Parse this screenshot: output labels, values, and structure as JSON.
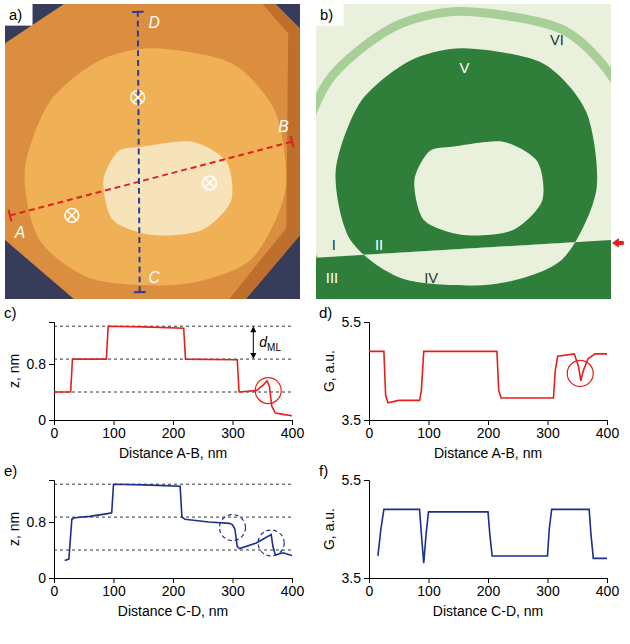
{
  "panels": [
    {
      "label": "a)",
      "points": [
        "A",
        "B",
        "C",
        "D"
      ]
    },
    {
      "label": "b)",
      "regions": [
        "I",
        "II",
        "III",
        "IV",
        "V",
        "VI"
      ]
    }
  ],
  "chart_data": [
    {
      "panel": "c)",
      "type": "line",
      "x_label": "Distance A-B, nm",
      "y_label": "z, nm",
      "xlim": [
        0,
        400
      ],
      "xticks": [
        0,
        100,
        200,
        300,
        400
      ],
      "ylim": [
        0,
        1.4
      ],
      "yticks": [
        0,
        0.8
      ],
      "x": [
        0,
        28,
        31,
        88,
        91,
        150,
        218,
        221,
        305,
        308,
        311,
        340,
        352,
        358,
        362,
        366,
        372,
        385,
        400
      ],
      "series": [
        {
          "color": "#e3211c",
          "values": [
            0.4,
            0.4,
            0.87,
            0.87,
            1.34,
            1.33,
            1.31,
            0.87,
            0.86,
            0.86,
            0.4,
            0.42,
            0.5,
            0.56,
            0.48,
            0.2,
            0.1,
            0.08,
            0.06
          ]
        }
      ],
      "hlines": [
        0.4,
        0.87,
        1.34
      ],
      "circles": [
        {
          "x": 360,
          "y": 0.42,
          "line_style": "solid"
        }
      ],
      "annotations": [
        {
          "text": "d",
          "subscript": "ML",
          "x": 335,
          "y": [
            0.87,
            1.34
          ]
        }
      ]
    },
    {
      "panel": "d)",
      "type": "line",
      "x_label": "Distance A-B, nm",
      "y_label": "G, a.u.",
      "xlim": [
        0,
        400
      ],
      "xticks": [
        0,
        100,
        200,
        300,
        400
      ],
      "ylim": [
        3.5,
        5.5
      ],
      "yticks": [
        3.5,
        5.5
      ],
      "x": [
        0,
        25,
        28,
        32,
        50,
        85,
        88,
        92,
        150,
        215,
        218,
        222,
        270,
        310,
        313,
        317,
        345,
        352,
        356,
        360,
        368,
        380,
        400
      ],
      "series": [
        {
          "color": "#e3211c",
          "values": [
            4.9,
            4.9,
            4.0,
            3.85,
            3.9,
            3.9,
            4.1,
            4.9,
            4.9,
            4.9,
            4.1,
            3.95,
            3.95,
            3.95,
            4.5,
            4.8,
            4.85,
            4.6,
            4.3,
            4.5,
            4.75,
            4.85,
            4.85
          ]
        }
      ],
      "circles": [
        {
          "x": 355,
          "y": 4.45,
          "line_style": "solid"
        }
      ]
    },
    {
      "panel": "e)",
      "type": "line",
      "x_label": "Distance C-D, nm",
      "y_label": "z, nm",
      "xlim": [
        0,
        400
      ],
      "xticks": [
        0,
        100,
        200,
        300,
        400
      ],
      "ylim": [
        0,
        1.4
      ],
      "yticks": [
        0,
        0.8
      ],
      "x": [
        18,
        25,
        30,
        35,
        60,
        90,
        97,
        100,
        150,
        212,
        215,
        220,
        260,
        295,
        300,
        304,
        308,
        312,
        340,
        365,
        368,
        372,
        385,
        400
      ],
      "series": [
        {
          "color": "#1c2f8c",
          "values": [
            0.25,
            0.27,
            0.84,
            0.86,
            0.88,
            0.92,
            0.93,
            1.34,
            1.33,
            1.31,
            0.87,
            0.84,
            0.8,
            0.78,
            0.76,
            0.7,
            0.45,
            0.42,
            0.5,
            0.62,
            0.45,
            0.33,
            0.36,
            0.32
          ]
        }
      ],
      "hlines": [
        0.4,
        0.87,
        1.34
      ],
      "circles": [
        {
          "x": 300,
          "y": 0.72,
          "line_style": "dashed"
        },
        {
          "x": 365,
          "y": 0.5,
          "line_style": "dashed"
        }
      ]
    },
    {
      "panel": "f)",
      "type": "line",
      "x_label": "Distance C-D, nm",
      "y_label": "G, a.u.",
      "xlim": [
        0,
        400
      ],
      "xticks": [
        0,
        100,
        200,
        300,
        400
      ],
      "ylim": [
        3.5,
        5.5
      ],
      "yticks": [
        3.5,
        5.5
      ],
      "x": [
        15,
        20,
        25,
        85,
        88,
        92,
        96,
        100,
        200,
        203,
        207,
        250,
        300,
        303,
        307,
        370,
        373,
        377,
        400
      ],
      "series": [
        {
          "color": "#1c2f8c",
          "values": [
            3.95,
            4.5,
            4.9,
            4.9,
            4.4,
            3.8,
            4.4,
            4.85,
            4.85,
            4.4,
            3.95,
            3.95,
            3.95,
            4.5,
            4.9,
            4.9,
            4.4,
            3.9,
            3.9
          ]
        }
      ]
    }
  ]
}
